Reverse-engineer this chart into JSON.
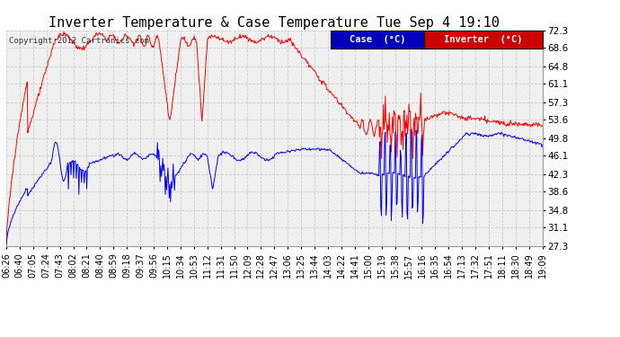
{
  "title": "Inverter Temperature & Case Temperature Tue Sep 4 19:10",
  "copyright": "Copyright 2012 Cartronics.com",
  "yticks": [
    27.3,
    31.1,
    34.8,
    38.6,
    42.3,
    46.1,
    49.8,
    53.6,
    57.3,
    61.1,
    64.8,
    68.6,
    72.3
  ],
  "ylim": [
    27.3,
    72.3
  ],
  "legend_case_label": "Case  (°C)",
  "legend_inverter_label": "Inverter  (°C)",
  "legend_case_bg": "#0000bb",
  "legend_inverter_bg": "#cc0000",
  "inverter_color": "#ff0000",
  "case_color": "#0000ff",
  "bg_color": "#ffffff",
  "plot_bg_color": "#f0f0f0",
  "grid_color": "#cccccc",
  "title_fontsize": 11,
  "tick_fontsize": 7.5,
  "xtick_labels": [
    "06:26",
    "06:40",
    "07:05",
    "07:24",
    "07:43",
    "08:02",
    "08:21",
    "08:40",
    "08:59",
    "09:18",
    "09:37",
    "09:56",
    "10:15",
    "10:34",
    "10:53",
    "11:12",
    "11:31",
    "11:50",
    "12:09",
    "12:28",
    "12:47",
    "13:06",
    "13:25",
    "13:44",
    "14:03",
    "14:22",
    "14:41",
    "15:00",
    "15:19",
    "15:38",
    "15:57",
    "16:16",
    "16:35",
    "16:54",
    "17:13",
    "17:32",
    "17:51",
    "18:11",
    "18:30",
    "18:49",
    "19:09"
  ]
}
